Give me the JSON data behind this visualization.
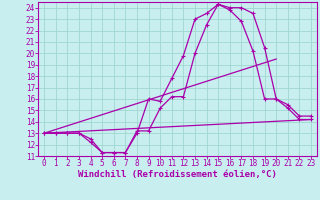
{
  "xlabel": "Windchill (Refroidissement éolien,°C)",
  "bg_color": "#c8eef0",
  "grid_color": "#a0d8d0",
  "line_color": "#aa00aa",
  "xlim": [
    -0.5,
    23.5
  ],
  "ylim": [
    11,
    24.5
  ],
  "xticks": [
    0,
    1,
    2,
    3,
    4,
    5,
    6,
    7,
    8,
    9,
    10,
    11,
    12,
    13,
    14,
    15,
    16,
    17,
    18,
    19,
    20,
    21,
    22,
    23
  ],
  "yticks": [
    11,
    12,
    13,
    14,
    15,
    16,
    17,
    18,
    19,
    20,
    21,
    22,
    23,
    24
  ],
  "curve1_x": [
    0,
    1,
    2,
    3,
    4,
    5,
    6,
    7,
    8,
    9,
    10,
    11,
    12,
    13,
    14,
    15,
    16,
    17,
    18,
    19,
    20,
    21,
    22,
    23
  ],
  "curve1_y": [
    13,
    13,
    13,
    13,
    12.5,
    11.3,
    11.3,
    11.3,
    13,
    16,
    15.8,
    17.8,
    19.8,
    23,
    23.5,
    24.3,
    23.8,
    22.8,
    20.2,
    16.0,
    16.0,
    15.2,
    14.2,
    14.2
  ],
  "curve2_x": [
    0,
    1,
    2,
    3,
    4,
    5,
    6,
    7,
    8,
    9,
    10,
    11,
    12,
    13,
    14,
    15,
    16,
    17,
    18,
    19,
    20,
    21,
    22,
    23
  ],
  "curve2_y": [
    13,
    13,
    13,
    13,
    12.2,
    11.3,
    11.3,
    11.3,
    13.2,
    13.2,
    15.2,
    16.2,
    16.2,
    20.0,
    22.5,
    24.3,
    24.0,
    24.0,
    23.5,
    20.5,
    16.0,
    15.5,
    14.5,
    14.5
  ],
  "line1_x": [
    0,
    23
  ],
  "line1_y": [
    13,
    14.2
  ],
  "line2_x": [
    0,
    20
  ],
  "line2_y": [
    13,
    19.5
  ],
  "tick_fontsize": 5.5,
  "xlabel_fontsize": 6.5
}
